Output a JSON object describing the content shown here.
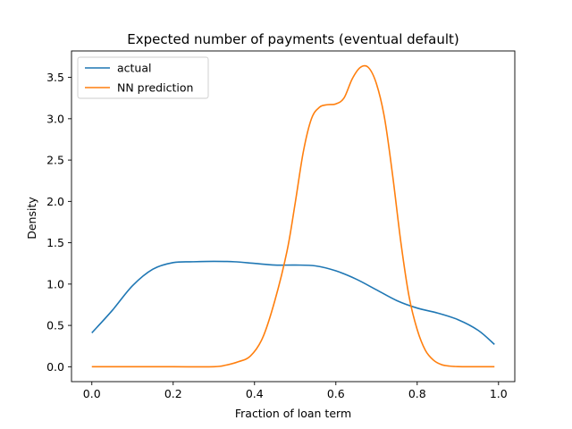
{
  "chart_data": {
    "type": "line",
    "title": "Expected number of payments (eventual default)",
    "xlabel": "Fraction of loan term",
    "ylabel": "Density",
    "xlim": [
      -0.05,
      1.04
    ],
    "ylim": [
      -0.18,
      3.82
    ],
    "xticks": [
      0.0,
      0.2,
      0.4,
      0.6,
      0.8,
      1.0
    ],
    "xtick_labels": [
      "0.0",
      "0.2",
      "0.4",
      "0.6",
      "0.8",
      "1.0"
    ],
    "yticks": [
      0.0,
      0.5,
      1.0,
      1.5,
      2.0,
      2.5,
      3.0,
      3.5
    ],
    "ytick_labels": [
      "0.0",
      "0.5",
      "1.0",
      "1.5",
      "2.0",
      "2.5",
      "3.0",
      "3.5"
    ],
    "grid": false,
    "legend_position": "top-left",
    "series": [
      {
        "name": "actual",
        "color": "#1f77b4",
        "x": [
          0.0,
          0.05,
          0.1,
          0.15,
          0.2,
          0.25,
          0.3,
          0.35,
          0.4,
          0.45,
          0.5,
          0.55,
          0.6,
          0.65,
          0.7,
          0.75,
          0.8,
          0.85,
          0.9,
          0.95,
          0.99
        ],
        "y": [
          0.41,
          0.68,
          0.98,
          1.18,
          1.26,
          1.27,
          1.275,
          1.27,
          1.25,
          1.23,
          1.23,
          1.22,
          1.16,
          1.06,
          0.93,
          0.8,
          0.71,
          0.65,
          0.57,
          0.44,
          0.27
        ]
      },
      {
        "name": "NN prediction",
        "color": "#ff7f0e",
        "x": [
          0.0,
          0.1,
          0.2,
          0.3,
          0.33,
          0.36,
          0.39,
          0.42,
          0.45,
          0.48,
          0.5,
          0.52,
          0.54,
          0.56,
          0.58,
          0.6,
          0.62,
          0.64,
          0.66,
          0.68,
          0.7,
          0.72,
          0.74,
          0.76,
          0.78,
          0.8,
          0.82,
          0.84,
          0.86,
          0.88,
          0.9,
          0.95,
          0.99
        ],
        "y": [
          0.0,
          0.0,
          0.0,
          0.0,
          0.02,
          0.06,
          0.13,
          0.35,
          0.8,
          1.4,
          1.98,
          2.6,
          3.0,
          3.14,
          3.17,
          3.18,
          3.25,
          3.48,
          3.62,
          3.62,
          3.42,
          3.0,
          2.3,
          1.5,
          0.85,
          0.45,
          0.2,
          0.08,
          0.025,
          0.008,
          0.002,
          0.0,
          0.0
        ]
      }
    ]
  }
}
